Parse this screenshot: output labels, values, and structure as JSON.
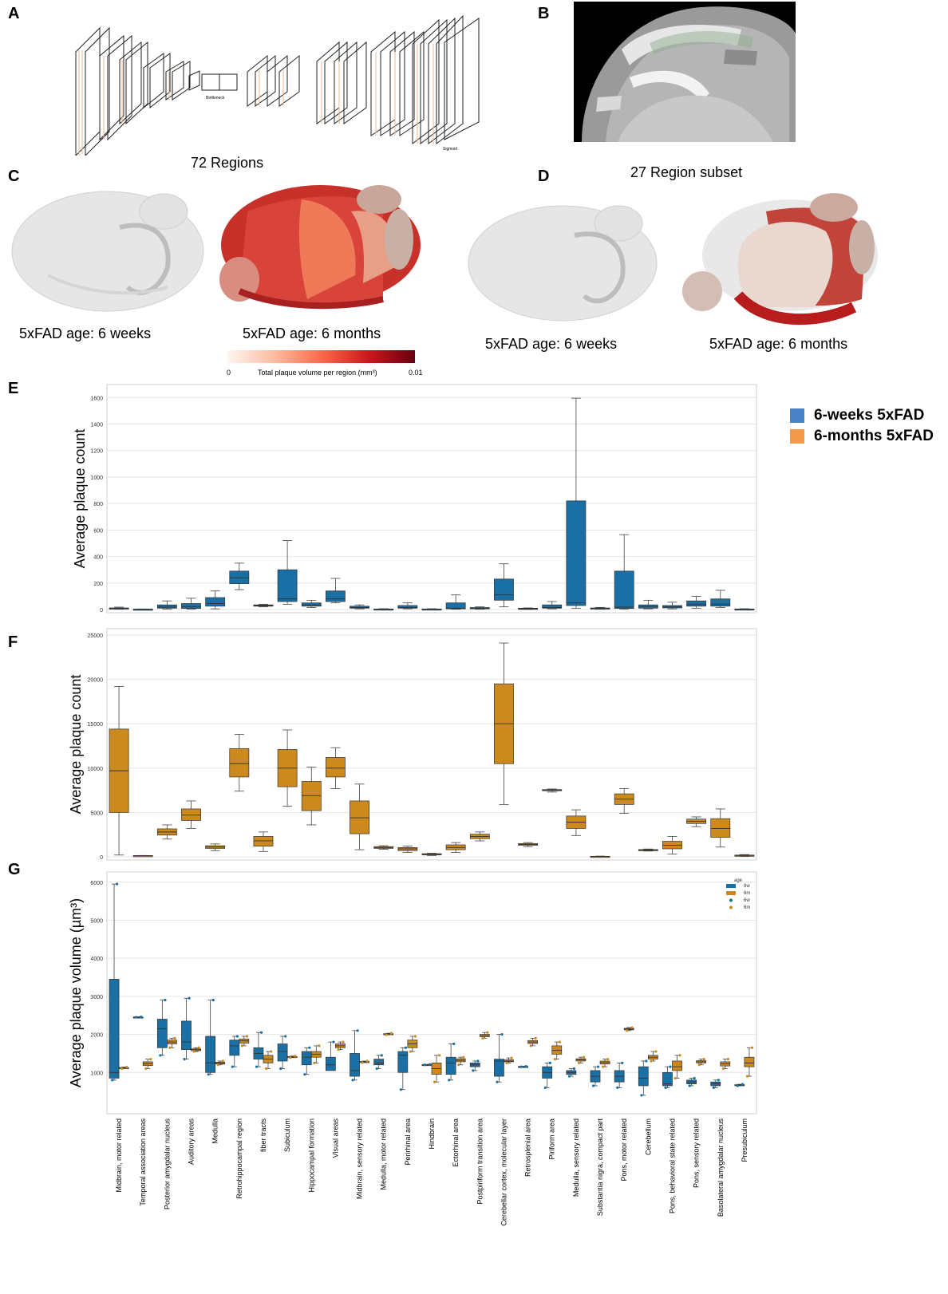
{
  "panels": {
    "A": {
      "letter": "A",
      "caption": "72 Regions",
      "bottleneck_label": "Bottleneck",
      "sigmoid_label": "Sigmoid"
    },
    "B": {
      "letter": "B",
      "caption": "27 Region subset"
    },
    "C": {
      "letter": "C",
      "left_caption": "5xFAD age: 6 weeks",
      "right_caption": "5xFAD age: 6 months"
    },
    "D": {
      "letter": "D",
      "left_caption": "5xFAD age: 6 weeks",
      "right_caption": "5xFAD age: 6 months"
    },
    "E": {
      "letter": "E"
    },
    "F": {
      "letter": "F"
    },
    "G": {
      "letter": "G"
    }
  },
  "colorbar": {
    "min_label": "0",
    "max_label": "0.01",
    "title": "Total plaque volume per region (mm³)"
  },
  "legend_e": {
    "items": [
      {
        "label": "6-weeks 5xFAD",
        "color": "#4a80c4"
      },
      {
        "label": "6-months 5xFAD",
        "color": "#f29a4a"
      }
    ]
  },
  "legend_g": {
    "title": "age",
    "items": [
      {
        "label": "6w",
        "kind": "box",
        "color": "#1a6fa4"
      },
      {
        "label": "6m",
        "kind": "box",
        "color": "#cc8a1e"
      },
      {
        "label": "6w",
        "kind": "dot",
        "color": "#1a6fa4"
      },
      {
        "label": "6m",
        "kind": "dot",
        "color": "#cc8a1e"
      }
    ]
  },
  "colors": {
    "blue": "#1a6fa4",
    "orange": "#cc8a1e"
  },
  "chart_data": [
    {
      "id": "E",
      "type": "box",
      "ylabel": "Average plaque count",
      "ylim": [
        0,
        1650
      ],
      "yticks": [
        0,
        200,
        400,
        600,
        800,
        1000,
        1200,
        1400,
        1600
      ],
      "series": [
        {
          "name": "6-weeks 5xFAD",
          "color": "blue",
          "boxes": [
            [
              2,
              5,
              8,
              12,
              18
            ],
            [
              0,
              1,
              2,
              3,
              4
            ],
            [
              3,
              10,
              18,
              35,
              65
            ],
            [
              3,
              8,
              20,
              45,
              85
            ],
            [
              5,
              25,
              45,
              90,
              140
            ],
            [
              150,
              195,
              240,
              290,
              350
            ],
            [
              20,
              25,
              30,
              35,
              40
            ],
            [
              40,
              60,
              80,
              300,
              520
            ],
            [
              15,
              25,
              35,
              50,
              70
            ],
            [
              50,
              60,
              80,
              140,
              235
            ],
            [
              5,
              10,
              15,
              25,
              35
            ],
            [
              1,
              2,
              3,
              4,
              6
            ],
            [
              5,
              10,
              15,
              30,
              50
            ],
            [
              1,
              2,
              3,
              4,
              6
            ],
            [
              2,
              5,
              10,
              50,
              110
            ],
            [
              2,
              5,
              10,
              15,
              20
            ],
            [
              20,
              70,
              110,
              230,
              345
            ],
            [
              1,
              3,
              6,
              10,
              12
            ],
            [
              5,
              10,
              15,
              35,
              60
            ],
            [
              10,
              30,
              50,
              820,
              1595
            ],
            [
              2,
              5,
              8,
              12,
              16
            ],
            [
              2,
              8,
              18,
              290,
              565
            ],
            [
              5,
              10,
              20,
              35,
              70
            ],
            [
              5,
              12,
              20,
              30,
              55
            ],
            [
              10,
              25,
              40,
              65,
              100
            ],
            [
              15,
              25,
              40,
              80,
              145
            ],
            [
              1,
              2,
              3,
              4,
              6
            ]
          ]
        }
      ]
    },
    {
      "id": "F",
      "type": "box",
      "ylabel": "Average plaque count",
      "ylim": [
        0,
        25000
      ],
      "yticks": [
        0,
        5000,
        10000,
        15000,
        20000,
        25000
      ],
      "series": [
        {
          "name": "6-months 5xFAD",
          "color": "orange",
          "boxes": [
            [
              200,
              5000,
              9700,
              14400,
              19200
            ],
            [
              100,
              120,
              130,
              140,
              150
            ],
            [
              2000,
              2450,
              2800,
              3150,
              3600
            ],
            [
              3200,
              4100,
              4700,
              5400,
              6300
            ],
            [
              700,
              950,
              1100,
              1250,
              1450
            ],
            [
              7400,
              9000,
              10500,
              12200,
              13800
            ],
            [
              600,
              1200,
              1800,
              2300,
              2800
            ],
            [
              5700,
              7900,
              10000,
              12100,
              14300
            ],
            [
              3600,
              5200,
              6900,
              8500,
              10100
            ],
            [
              7700,
              9000,
              10000,
              11200,
              12300
            ],
            [
              800,
              2600,
              4400,
              6300,
              8200
            ],
            [
              850,
              950,
              1050,
              1150,
              1250
            ],
            [
              500,
              700,
              900,
              1050,
              1200
            ],
            [
              150,
              250,
              300,
              350,
              400
            ],
            [
              500,
              800,
              1050,
              1350,
              1600
            ],
            [
              1800,
              2050,
              2300,
              2550,
              2800
            ],
            [
              5900,
              10500,
              15000,
              19500,
              24100
            ],
            [
              1150,
              1300,
              1400,
              1500,
              1600
            ],
            [
              7300,
              7450,
              7500,
              7580,
              7650
            ],
            [
              2400,
              3200,
              3900,
              4600,
              5300
            ],
            [
              0,
              20,
              40,
              60,
              80
            ],
            [
              4900,
              5900,
              6500,
              7100,
              7700
            ],
            [
              650,
              720,
              770,
              820,
              880
            ],
            [
              300,
              900,
              1300,
              1750,
              2300
            ],
            [
              3400,
              3750,
              4000,
              4250,
              4500
            ],
            [
              1100,
              2200,
              3200,
              4300,
              5400
            ],
            [
              50,
              100,
              150,
              200,
              250
            ]
          ]
        }
      ]
    },
    {
      "id": "G",
      "type": "box",
      "ylabel": "Average plaque volume (µm³)",
      "ylim": [
        0,
        6100
      ],
      "yticks": [
        1000,
        2000,
        3000,
        4000,
        5000,
        6000
      ],
      "categories": [
        "Midbrain, motor related",
        "Temporal association areas",
        "Posterior amygdalar nucleus",
        "Auditory areas",
        "Medulla",
        "Retrohippocampal region",
        "fiber tracts",
        "Subiculum",
        "Hippocampal formation",
        "Visual areas",
        "Midbrain, sensory related",
        "Medulla, motor related",
        "Perirhinal area",
        "Hindbrain",
        "Ectorhinal area",
        "Postpiriform transition area",
        "Cerebellar cortex, molecular layer",
        "Retrosplenial area",
        "Piriform area",
        "Medulla, sensory related",
        "Substantia nigra, compact part",
        "Pons, motor related",
        "Cerebellum",
        "Pons, behavioral state related",
        "Pons, sensory related",
        "Basolateral amygdalar nucleus",
        "Presubiculum"
      ],
      "series": [
        {
          "name": "6w",
          "color": "blue",
          "boxes": [
            [
              800,
              850,
              1000,
              3450,
              5950
            ],
            [
              2450,
              2450,
              2450,
              2460,
              2460
            ],
            [
              1450,
              1650,
              2150,
              2400,
              2900
            ],
            [
              1350,
              1600,
              1800,
              2350,
              2950
            ],
            [
              950,
              1000,
              1250,
              1950,
              2900
            ],
            [
              1150,
              1450,
              1700,
              1850,
              1950
            ],
            [
              1150,
              1350,
              1500,
              1650,
              2050
            ],
            [
              1100,
              1300,
              1550,
              1750,
              1950
            ],
            [
              950,
              1200,
              1400,
              1550,
              1650
            ],
            [
              1100,
              1050,
              1200,
              1400,
              1800
            ],
            [
              800,
              900,
              1050,
              1500,
              2100
            ],
            [
              1100,
              1200,
              1250,
              1350,
              1450
            ],
            [
              550,
              1000,
              1450,
              1550,
              1650
            ],
            [
              1200,
              1200,
              1200,
              1210,
              1210
            ],
            [
              800,
              950,
              1250,
              1400,
              1750
            ],
            [
              1050,
              1150,
              1200,
              1250,
              1300
            ],
            [
              750,
              900,
              1300,
              1350,
              2000
            ],
            [
              1150,
              1150,
              1150,
              1160,
              1160
            ],
            [
              600,
              850,
              1000,
              1150,
              1250
            ],
            [
              900,
              950,
              1000,
              1050,
              1100
            ],
            [
              650,
              750,
              900,
              1050,
              1150
            ],
            [
              600,
              750,
              900,
              1050,
              1250
            ],
            [
              400,
              650,
              850,
              1150,
              1300
            ],
            [
              600,
              650,
              700,
              1000,
              1150
            ],
            [
              650,
              700,
              750,
              800,
              850
            ],
            [
              600,
              650,
              700,
              750,
              800
            ],
            [
              650,
              660,
              670,
              680,
              690
            ]
          ]
        },
        {
          "name": "6m",
          "color": "orange",
          "boxes": [
            [
              1100,
              1110,
              1120,
              1130,
              1140
            ],
            [
              1100,
              1180,
              1230,
              1280,
              1350
            ],
            [
              1650,
              1750,
              1800,
              1850,
              1900
            ],
            [
              1550,
              1570,
              1600,
              1620,
              1650
            ],
            [
              1200,
              1220,
              1250,
              1270,
              1300
            ],
            [
              1700,
              1770,
              1830,
              1880,
              1950
            ],
            [
              1100,
              1250,
              1350,
              1450,
              1550
            ],
            [
              1390,
              1400,
              1410,
              1420,
              1430
            ],
            [
              1250,
              1400,
              1480,
              1550,
              1700
            ],
            [
              1600,
              1650,
              1700,
              1750,
              1800
            ],
            [
              1260,
              1270,
              1280,
              1290,
              1300
            ],
            [
              1990,
              2000,
              2010,
              2020,
              2030
            ],
            [
              1550,
              1650,
              1750,
              1850,
              1950
            ],
            [
              750,
              950,
              1100,
              1250,
              1450
            ],
            [
              1200,
              1280,
              1320,
              1360,
              1400
            ],
            [
              1900,
              1940,
              1970,
              2000,
              2050
            ],
            [
              1250,
              1280,
              1300,
              1330,
              1380
            ],
            [
              1700,
              1760,
              1800,
              1840,
              1900
            ],
            [
              1350,
              1480,
              1580,
              1700,
              1800
            ],
            [
              1250,
              1300,
              1330,
              1360,
              1400
            ],
            [
              1150,
              1220,
              1260,
              1300,
              1350
            ],
            [
              2100,
              2120,
              2140,
              2160,
              2180
            ],
            [
              1300,
              1350,
              1400,
              1450,
              1550
            ],
            [
              850,
              1050,
              1150,
              1300,
              1450
            ],
            [
              1200,
              1250,
              1280,
              1310,
              1350
            ],
            [
              1100,
              1170,
              1230,
              1280,
              1350
            ],
            [
              900,
              1150,
              1250,
              1400,
              1650
            ]
          ]
        }
      ]
    }
  ]
}
